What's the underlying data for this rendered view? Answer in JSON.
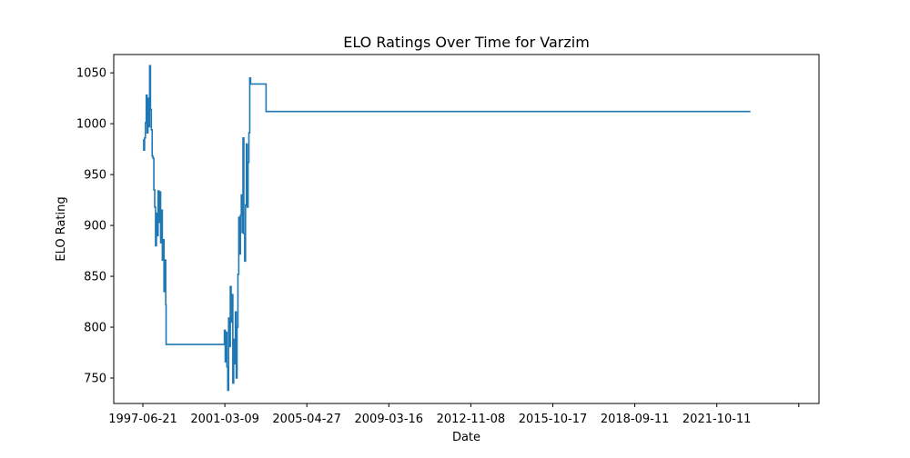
{
  "chart_data": {
    "type": "line",
    "title": "ELO Ratings Over Time for Varzim",
    "xlabel": "Date",
    "ylabel": "ELO Rating",
    "x_ticks": [
      "1997-06-21",
      "2001-03-09",
      "2005-04-27",
      "2009-03-16",
      "2012-11-08",
      "2015-10-17",
      "2018-09-11",
      "2021-10-11",
      ""
    ],
    "y_ticks": [
      "750",
      "800",
      "850",
      "900",
      "950",
      "1000",
      "1050"
    ],
    "ylim": [
      725,
      1068
    ],
    "grid": false,
    "color": "#1f77b4",
    "series": [
      {
        "points": [
          [
            "1997-06-21",
            984
          ],
          [
            "1997-07-05",
            974
          ],
          [
            "1997-07-19",
            986
          ],
          [
            "1997-08-02",
            1001
          ],
          [
            "1997-08-16",
            1028
          ],
          [
            "1997-08-30",
            991
          ],
          [
            "1997-09-13",
            1025
          ],
          [
            "1997-09-27",
            997
          ],
          [
            "1997-10-11",
            1057
          ],
          [
            "1997-10-25",
            1014
          ],
          [
            "1997-11-08",
            994
          ],
          [
            "1997-11-22",
            968
          ],
          [
            "1997-12-06",
            966
          ],
          [
            "1997-12-20",
            935
          ],
          [
            "1998-01-03",
            918
          ],
          [
            "1998-01-17",
            880
          ],
          [
            "1998-01-31",
            912
          ],
          [
            "1998-02-14",
            890
          ],
          [
            "1998-02-28",
            934
          ],
          [
            "1998-03-14",
            903
          ],
          [
            "1998-03-28",
            933
          ],
          [
            "1998-04-11",
            883
          ],
          [
            "1998-04-25",
            915
          ],
          [
            "1998-05-09",
            866
          ],
          [
            "1998-05-23",
            886
          ],
          [
            "1998-06-06",
            835
          ],
          [
            "1998-06-20",
            866
          ],
          [
            "1998-07-04",
            822
          ],
          [
            "1998-07-11",
            783
          ],
          [
            "2001-02-01",
            783
          ],
          [
            "2001-03-01",
            797
          ],
          [
            "2001-03-15",
            766
          ],
          [
            "2001-03-29",
            795
          ],
          [
            "2001-04-12",
            761
          ],
          [
            "2001-04-26",
            738
          ],
          [
            "2001-05-10",
            809
          ],
          [
            "2001-05-24",
            781
          ],
          [
            "2001-06-07",
            840
          ],
          [
            "2001-06-21",
            805
          ],
          [
            "2001-07-05",
            832
          ],
          [
            "2001-07-19",
            745
          ],
          [
            "2001-08-02",
            788
          ],
          [
            "2001-08-16",
            764
          ],
          [
            "2001-08-30",
            815
          ],
          [
            "2001-09-13",
            750
          ],
          [
            "2001-09-27",
            800
          ],
          [
            "2001-10-11",
            852
          ],
          [
            "2001-10-25",
            908
          ],
          [
            "2001-11-08",
            872
          ],
          [
            "2001-11-22",
            910
          ],
          [
            "2001-12-06",
            930
          ],
          [
            "2001-12-20",
            893
          ],
          [
            "2002-01-03",
            986
          ],
          [
            "2002-01-17",
            892
          ],
          [
            "2002-01-31",
            865
          ],
          [
            "2002-02-14",
            920
          ],
          [
            "2002-02-28",
            980
          ],
          [
            "2002-03-14",
            918
          ],
          [
            "2002-03-28",
            962
          ],
          [
            "2002-04-11",
            991
          ],
          [
            "2002-04-25",
            1045
          ],
          [
            "2002-05-09",
            1039
          ],
          [
            "2003-01-15",
            1039
          ],
          [
            "2003-01-20",
            1012
          ],
          [
            "2025-01-01",
            1012
          ]
        ]
      }
    ]
  }
}
